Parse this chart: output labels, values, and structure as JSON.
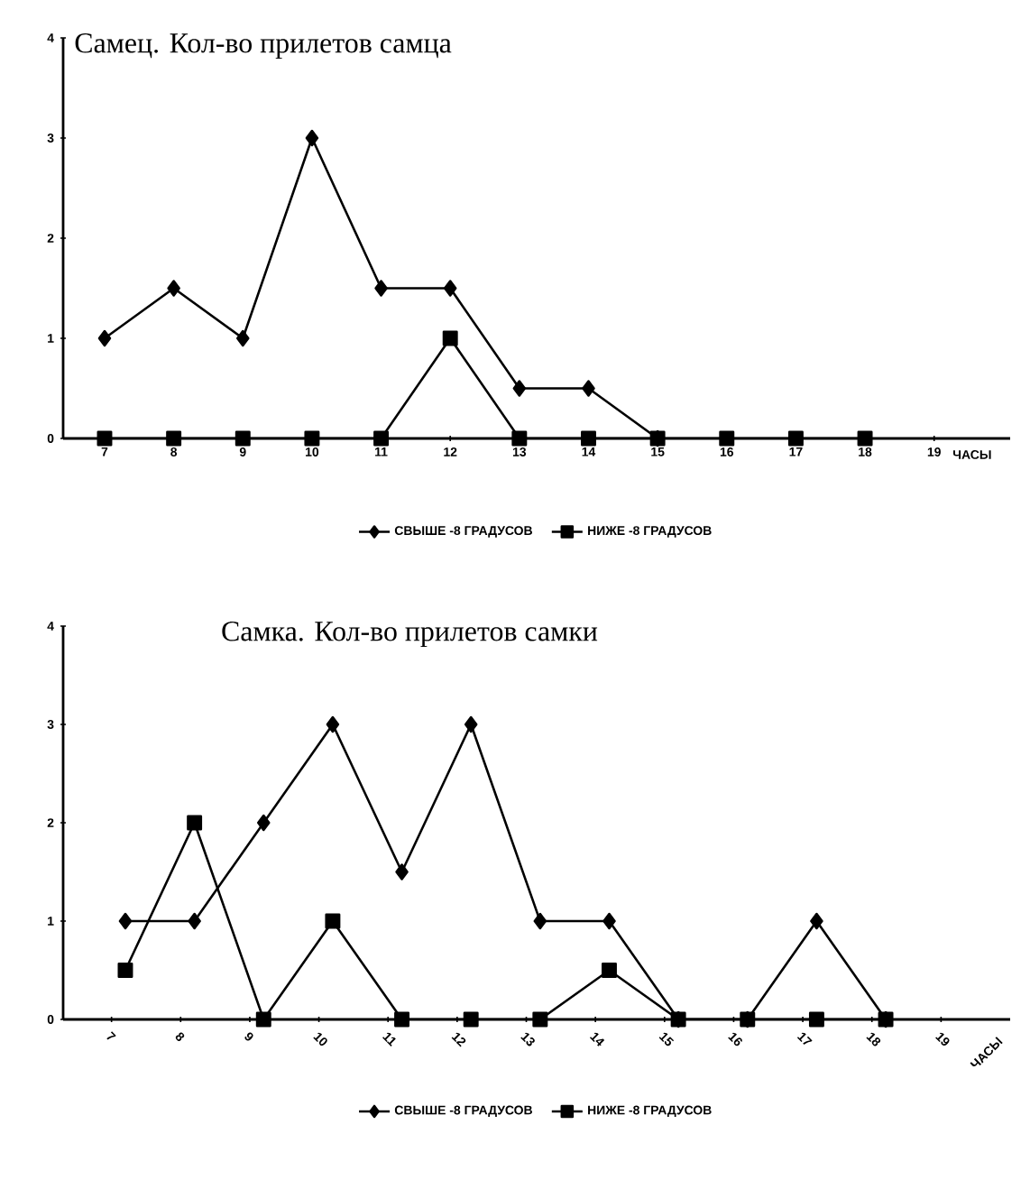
{
  "chart_data": [
    {
      "type": "line",
      "title": "Самец. Кол-во прилетов самца",
      "xlabel": "ЧАСЫ",
      "categories": [
        "7",
        "8",
        "9",
        "10",
        "11",
        "12",
        "13",
        "14",
        "15",
        "16",
        "17",
        "18",
        "19"
      ],
      "series": [
        {
          "name": "СВЫШЕ -8 ГРАДУСОВ",
          "color": "#000000",
          "marker": "diamond",
          "values": [
            1,
            1.5,
            1,
            3,
            1.5,
            1.5,
            0.5,
            0.5,
            0,
            null,
            null,
            null,
            null
          ]
        },
        {
          "name": "НИЖЕ -8 ГРАДУСОВ",
          "color": "#000000",
          "marker": "square",
          "values": [
            0,
            0,
            0,
            0,
            0,
            1,
            0,
            0,
            0,
            0,
            0,
            0,
            null
          ]
        }
      ],
      "ylim": [
        0,
        4
      ],
      "yticks": [
        0,
        1,
        2,
        3,
        4
      ],
      "legend": "bottom",
      "grid": false,
      "line_style": "solid"
    },
    {
      "type": "line",
      "title": "Самка. Кол-во прилетов самки",
      "xlabel": "ЧАСЫ",
      "categories": [
        "7",
        "8",
        "9",
        "10",
        "11",
        "12",
        "13",
        "14",
        "15",
        "16",
        "17",
        "18",
        "19"
      ],
      "series": [
        {
          "name": "СВЫШЕ -8 ГРАДУСОВ",
          "color": "#000000",
          "marker": "diamond",
          "values": [
            1,
            1,
            2,
            3,
            1.5,
            3,
            1,
            1,
            0,
            0,
            1,
            0,
            null
          ]
        },
        {
          "name": "НИЖЕ -8 ГРАДУСОВ",
          "color": "#000000",
          "marker": "square",
          "values": [
            0.5,
            2,
            0,
            1,
            0,
            0,
            0,
            0.5,
            0,
            0,
            0,
            0,
            null
          ]
        }
      ],
      "ylim": [
        0,
        4
      ],
      "yticks": [
        0,
        1,
        2,
        3,
        4
      ],
      "legend": "bottom",
      "grid": false,
      "line_style": "solid"
    }
  ]
}
